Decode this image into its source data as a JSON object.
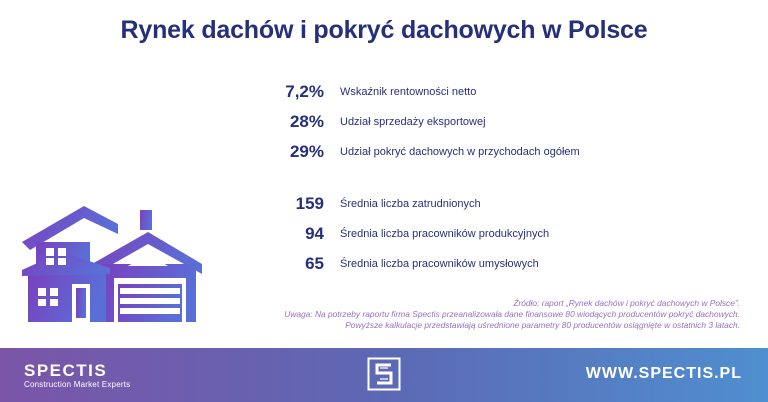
{
  "title": "Rynek dachów i pokryć dachowych w Polsce",
  "stats": [
    {
      "value": "7,2%",
      "label": "Wskaźnik rentowności netto"
    },
    {
      "value": "28%",
      "label": "Udział sprzedaży eksportowej"
    },
    {
      "value": "29%",
      "label": "Udział pokryć dachowych w przychodach ogółem"
    },
    {
      "value": "159",
      "label": "Średnia liczba zatrudnionych"
    },
    {
      "value": "94",
      "label": "Średnia liczba pracowników produkcyjnych"
    },
    {
      "value": "65",
      "label": "Średnia liczba pracowników umysłowych"
    }
  ],
  "notes": [
    "Źródło: raport „Rynek dachów i pokryć dachowych w Polsce”.",
    "Uwaga: Na potrzeby raportu firma Spectis przeanalizowała dane finansowe 80 wiodących producentów pokryć dachowych.",
    "Powyższe kalkulacje przedstawiają uśrednione parametry 80 producentów osiągnięte w ostatnich 3 latach."
  ],
  "footer": {
    "brand_name": "SPECTIS",
    "brand_tagline": "Construction Market Experts",
    "url": "WWW.SPECTIS.PL"
  },
  "icons": {
    "house": "house-icon",
    "logo": "spectis-s-logo-icon"
  },
  "colors": {
    "title": "#26307a",
    "house_gradient_start": "#7b3fbf",
    "house_gradient_end": "#5a6fd6",
    "footer_gradient_start": "#7b55a8",
    "footer_gradient_end": "#4f8fcf",
    "notes": "#9a6fc6"
  }
}
